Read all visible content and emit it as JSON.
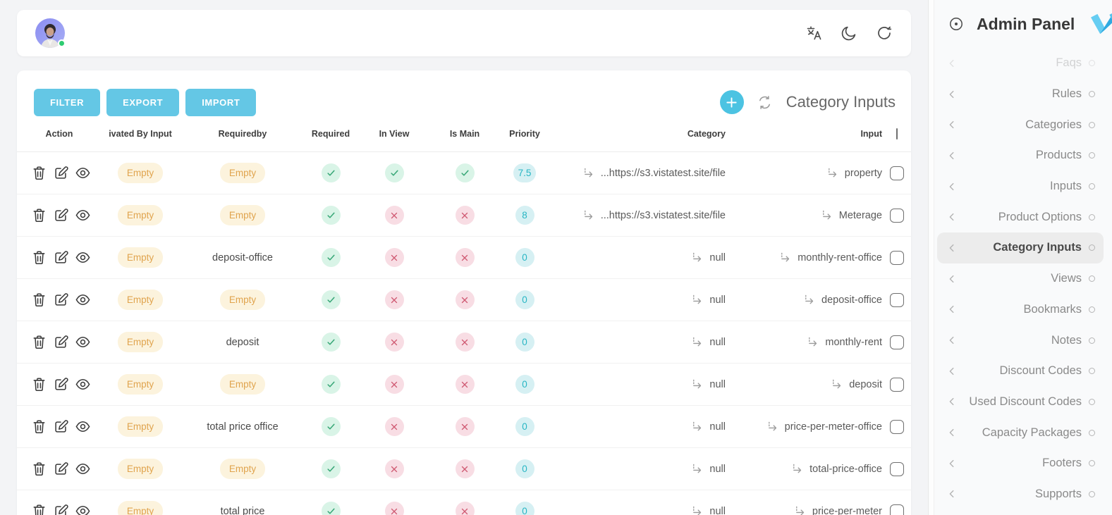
{
  "topbar": {
    "icons": {
      "translate": "translate-icon",
      "dark_mode": "dark-mode-icon",
      "refresh": "refresh-icon"
    }
  },
  "toolbar": {
    "buttons": [
      "FILTER",
      "EXPORT",
      "IMPORT"
    ],
    "title": "Category Inputs"
  },
  "table": {
    "columns": [
      "Action",
      "ivated By Input",
      "Requiredby",
      "Required",
      "In View",
      "Is Main",
      "Priority",
      "Category",
      "Input"
    ],
    "rows": [
      {
        "activated_by": "Empty",
        "activated_badge": true,
        "required_by": "Empty",
        "required_by_badge": true,
        "required": true,
        "in_view": true,
        "is_main": true,
        "priority": "7.5",
        "category": "...https://s3.vistatest.site/file",
        "input": "property"
      },
      {
        "activated_by": "Empty",
        "activated_badge": true,
        "required_by": "Empty",
        "required_by_badge": true,
        "required": true,
        "in_view": false,
        "is_main": false,
        "priority": "8",
        "category": "...https://s3.vistatest.site/file",
        "input": "Meterage"
      },
      {
        "activated_by": "Empty",
        "activated_badge": true,
        "required_by": "deposit-office",
        "required_by_badge": false,
        "required": true,
        "in_view": false,
        "is_main": false,
        "priority": "0",
        "category": "null",
        "input": "monthly-rent-office"
      },
      {
        "activated_by": "Empty",
        "activated_badge": true,
        "required_by": "Empty",
        "required_by_badge": true,
        "required": true,
        "in_view": false,
        "is_main": false,
        "priority": "0",
        "category": "null",
        "input": "deposit-office"
      },
      {
        "activated_by": "Empty",
        "activated_badge": true,
        "required_by": "deposit",
        "required_by_badge": false,
        "required": true,
        "in_view": false,
        "is_main": false,
        "priority": "0",
        "category": "null",
        "input": "monthly-rent"
      },
      {
        "activated_by": "Empty",
        "activated_badge": true,
        "required_by": "Empty",
        "required_by_badge": true,
        "required": true,
        "in_view": false,
        "is_main": false,
        "priority": "0",
        "category": "null",
        "input": "deposit"
      },
      {
        "activated_by": "Empty",
        "activated_badge": true,
        "required_by": "total price office",
        "required_by_badge": false,
        "required": true,
        "in_view": false,
        "is_main": false,
        "priority": "0",
        "category": "null",
        "input": "price-per-meter-office"
      },
      {
        "activated_by": "Empty",
        "activated_badge": true,
        "required_by": "Empty",
        "required_by_badge": true,
        "required": true,
        "in_view": false,
        "is_main": false,
        "priority": "0",
        "category": "null",
        "input": "total-price-office"
      },
      {
        "activated_by": "Empty",
        "activated_badge": true,
        "required_by": "total price",
        "required_by_badge": false,
        "required": true,
        "in_view": false,
        "is_main": false,
        "priority": "0",
        "category": "null",
        "input": "price-per-meter"
      }
    ]
  },
  "sidebar": {
    "title": "Admin Panel",
    "items": [
      {
        "label": "Faqs",
        "active": false,
        "faded": true
      },
      {
        "label": "Rules",
        "active": false
      },
      {
        "label": "Categories",
        "active": false
      },
      {
        "label": "Products",
        "active": false
      },
      {
        "label": "Inputs",
        "active": false
      },
      {
        "label": "Product Options",
        "active": false
      },
      {
        "label": "Category Inputs",
        "active": true
      },
      {
        "label": "Views",
        "active": false
      },
      {
        "label": "Bookmarks",
        "active": false
      },
      {
        "label": "Notes",
        "active": false
      },
      {
        "label": "Discount Codes",
        "active": false
      },
      {
        "label": "Used Discount Codes",
        "active": false
      },
      {
        "label": "Capacity Packages",
        "active": false
      },
      {
        "label": "Footers",
        "active": false
      },
      {
        "label": "Supports",
        "active": false
      }
    ]
  },
  "colors": {
    "button_blue": "#64c7e5",
    "plus_teal": "#4cc3e2",
    "badge_bg": "#fcf3dd",
    "badge_text": "#e0a44e",
    "check_green": "#3aa878",
    "check_bg": "#d9f4e7",
    "cross_red": "#cf5a72",
    "cross_bg": "#f8dde4",
    "priority_teal": "#27b5c3",
    "priority_bg": "#d6f0f3",
    "logo_blue_light": "#66cdf2",
    "logo_blue_dark": "#2fa9e0"
  }
}
